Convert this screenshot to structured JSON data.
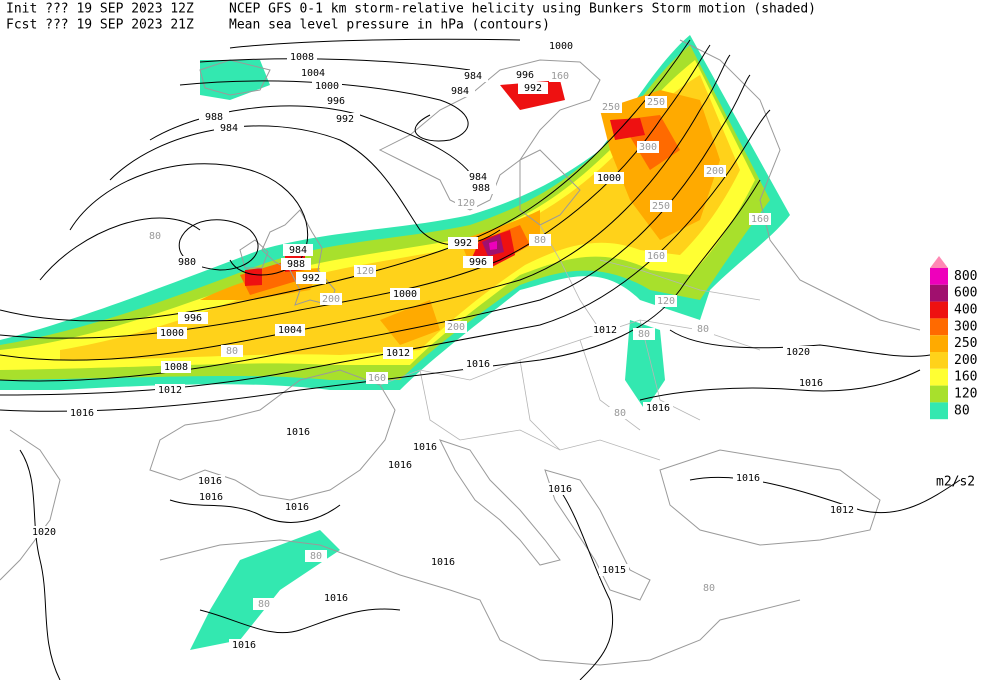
{
  "header": {
    "init": "Init  ??? 19 SEP 2023 12Z",
    "fcst": "Fcst ??? 19 SEP 2023 21Z",
    "title": "NCEP GFS 0-1 km storm-relative helicity using Bunkers Storm motion (shaded)",
    "subtitle": "Mean sea level pressure in hPa (contours)"
  },
  "legend": {
    "levels": [
      {
        "value": 80,
        "color": "#33e8b0"
      },
      {
        "value": 120,
        "color": "#a8e02c"
      },
      {
        "value": 160,
        "color": "#ffff33"
      },
      {
        "value": 200,
        "color": "#ffd21a"
      },
      {
        "value": 250,
        "color": "#ffaa00"
      },
      {
        "value": 300,
        "color": "#ff6a00"
      },
      {
        "value": 400,
        "color": "#ee1111"
      },
      {
        "value": 600,
        "color": "#a0106e"
      },
      {
        "value": 800,
        "color": "#ee00bb"
      }
    ],
    "over_color": "#ff88b4",
    "unit": "m2/s2"
  },
  "contour_labels": [
    1008,
    1004,
    1000,
    996,
    992,
    988,
    984,
    984,
    984,
    996,
    992,
    1000,
    1000,
    984,
    988,
    992,
    996,
    984,
    988,
    992,
    980,
    996,
    1000,
    1004,
    1000,
    1008,
    1012,
    1016,
    1012,
    1016,
    1012,
    1016,
    1020,
    1016,
    1016,
    1016,
    1016,
    1016,
    1016,
    1016,
    1016,
    1016,
    1012,
    1020,
    1016,
    1015,
    1016,
    1016
  ],
  "shading_labels": [
    160,
    250,
    250,
    300,
    200,
    250,
    160,
    160,
    120,
    80,
    80,
    200,
    160,
    120,
    200,
    80,
    80,
    120,
    80,
    80,
    80,
    80,
    80
  ]
}
